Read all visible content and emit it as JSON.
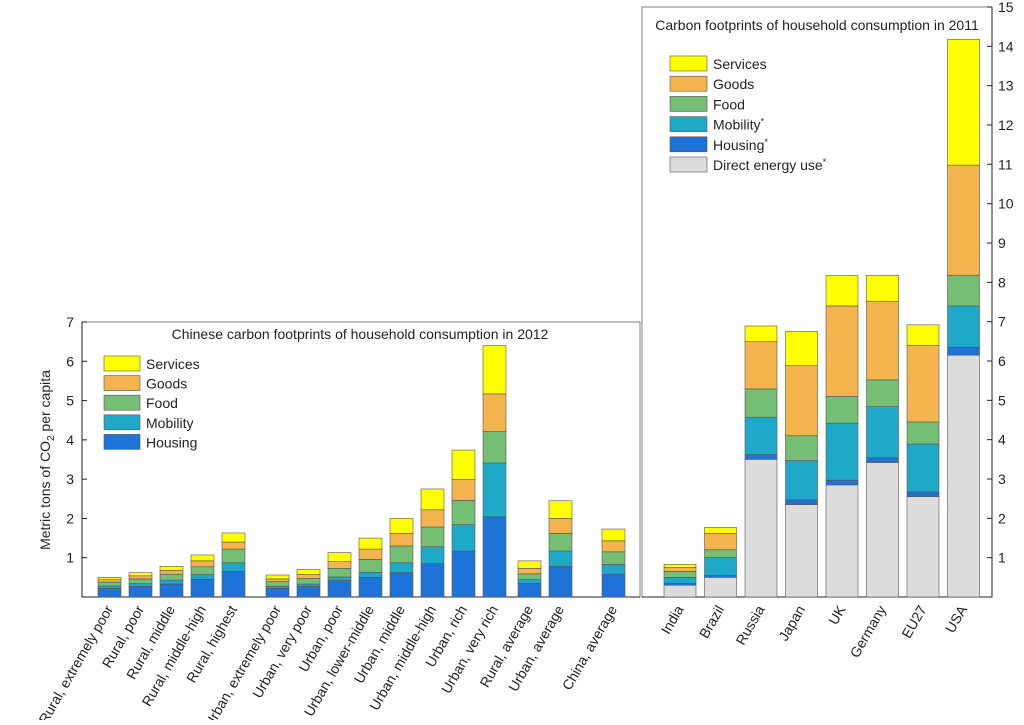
{
  "chart_data": [
    {
      "type": "bar",
      "stacked": true,
      "title": "Chinese carbon footprints of household consumption in 2012",
      "ylabel": "Metric tons of CO2 per capita",
      "ylabel_main": "Metric tons of CO",
      "ylabel_sub": "2",
      "ylabel_rest": " per capita",
      "ylim": [
        0,
        7
      ],
      "yticks": [
        1,
        2,
        3,
        4,
        5,
        6,
        7
      ],
      "legend_position": "top-left",
      "groups": [
        [
          "Rural, extremely poor",
          "Rural, poor",
          "Rural, middle",
          "Rural, middle-high",
          "Rural, highest"
        ],
        [
          "Urban, extremely poor",
          "Urban, very poor",
          "Urban, poor",
          "Urban, lower-middle",
          "Urban, middle",
          "Urban, middle-high",
          "Urban, rich",
          "Urban, very rich"
        ],
        [
          "Rural, average",
          "Urban, average"
        ],
        [
          "China, average"
        ]
      ],
      "categories": [
        "Rural, extremely poor",
        "Rural, poor",
        "Rural, middle",
        "Rural, middle-high",
        "Rural, highest",
        "Urban, extremely poor",
        "Urban, very poor",
        "Urban, poor",
        "Urban, lower-middle",
        "Urban, middle",
        "Urban, middle-high",
        "Urban, rich",
        "Urban, very rich",
        "Rural, average",
        "Urban, average",
        "China, average"
      ],
      "series": [
        {
          "name": "Housing",
          "color": "#1e73d8",
          "values": [
            0.22,
            0.27,
            0.33,
            0.45,
            0.65,
            0.22,
            0.27,
            0.42,
            0.5,
            0.62,
            0.85,
            1.17,
            2.04,
            0.35,
            0.78,
            0.58
          ]
        },
        {
          "name": "Mobility",
          "color": "#1fa9c9",
          "values": [
            0.06,
            0.07,
            0.1,
            0.12,
            0.22,
            0.05,
            0.06,
            0.09,
            0.13,
            0.25,
            0.43,
            0.67,
            1.37,
            0.09,
            0.39,
            0.25
          ]
        },
        {
          "name": "Food",
          "color": "#74bf74",
          "values": [
            0.1,
            0.12,
            0.15,
            0.2,
            0.35,
            0.12,
            0.14,
            0.22,
            0.33,
            0.43,
            0.5,
            0.62,
            0.8,
            0.15,
            0.45,
            0.32
          ]
        },
        {
          "name": "Goods",
          "color": "#f3b34d",
          "values": [
            0.06,
            0.08,
            0.1,
            0.15,
            0.18,
            0.07,
            0.1,
            0.17,
            0.26,
            0.32,
            0.44,
            0.53,
            0.96,
            0.14,
            0.38,
            0.28
          ]
        },
        {
          "name": "Services",
          "color": "#ffff00",
          "values": [
            0.06,
            0.08,
            0.1,
            0.15,
            0.23,
            0.1,
            0.13,
            0.23,
            0.28,
            0.38,
            0.53,
            0.75,
            1.23,
            0.19,
            0.45,
            0.3
          ]
        }
      ]
    },
    {
      "type": "bar",
      "stacked": true,
      "title": "Carbon footprints of household consumption in 2011",
      "ylim": [
        0,
        15
      ],
      "yticks": [
        1,
        2,
        3,
        4,
        5,
        6,
        7,
        8,
        9,
        10,
        11,
        12,
        13,
        14,
        15
      ],
      "y_axis_side": "right",
      "legend_position": "top-left",
      "categories": [
        "India",
        "Brazil",
        "Russia",
        "Japan",
        "UK",
        "Germany",
        "EU27",
        "USA"
      ],
      "series": [
        {
          "name": "Direct energy use",
          "legend_label": "Direct energy use",
          "marker": "*",
          "color": "#dcdcdc",
          "values": [
            0.3,
            0.5,
            3.5,
            2.35,
            2.85,
            3.42,
            2.55,
            6.15
          ]
        },
        {
          "name": "Housing",
          "legend_label": "Housing",
          "marker": "*",
          "color": "#1e73d8",
          "values": [
            0.05,
            0.05,
            0.12,
            0.12,
            0.12,
            0.12,
            0.12,
            0.2
          ]
        },
        {
          "name": "Mobility",
          "legend_label": "Mobility",
          "marker": "*",
          "color": "#1fa9c9",
          "values": [
            0.15,
            0.45,
            0.95,
            1.0,
            1.45,
            1.3,
            1.22,
            1.05
          ]
        },
        {
          "name": "Food",
          "legend_label": "Food",
          "color": "#74bf74",
          "values": [
            0.15,
            0.2,
            0.72,
            0.63,
            0.68,
            0.68,
            0.56,
            0.78
          ]
        },
        {
          "name": "Goods",
          "legend_label": "Goods",
          "color": "#f3b34d",
          "values": [
            0.1,
            0.42,
            1.2,
            1.78,
            2.3,
            2.0,
            1.95,
            2.8
          ]
        },
        {
          "name": "Services",
          "legend_label": "Services",
          "color": "#ffff00",
          "values": [
            0.08,
            0.15,
            0.4,
            0.87,
            0.77,
            0.66,
            0.52,
            3.2
          ]
        }
      ]
    }
  ]
}
